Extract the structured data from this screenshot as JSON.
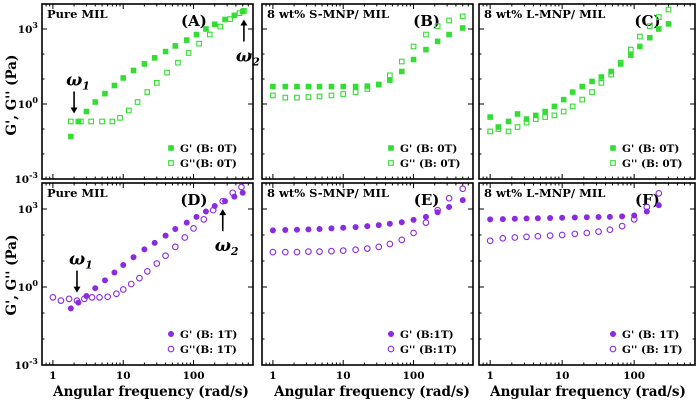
{
  "figure": {
    "ylabel": "G', G'' (Pa)",
    "xlabel": "Angular frequency (rad/s)",
    "colors": {
      "green": "#33dd33",
      "purple": "#8a2be2"
    },
    "y_ticks": [
      {
        "base": "10",
        "exp": "-3",
        "log": -3
      },
      {
        "base": "10",
        "exp": "0",
        "log": 0
      },
      {
        "base": "10",
        "exp": "3",
        "log": 3
      }
    ],
    "x_ticks": [
      {
        "label": "1",
        "log": 0
      },
      {
        "label": "10",
        "log": 1
      },
      {
        "label": "100",
        "log": 2
      }
    ]
  },
  "chart_data": [
    {
      "id": "A",
      "type": "scatter",
      "letter": "(A)",
      "title": "Pure MIL",
      "xscale": "log",
      "yscale": "log",
      "xlim": [
        0.7,
        700
      ],
      "ylim": [
        0.001,
        10000.0
      ],
      "legend_position": "bottom-right",
      "series": [
        {
          "name": "G' (B: 0T)",
          "marker": "square-filled",
          "color": "#33dd33",
          "x": [
            1.8,
            2.3,
            3,
            4,
            5.5,
            7.5,
            10,
            14,
            20,
            28,
            40,
            55,
            80,
            110,
            150,
            200,
            280,
            380,
            500
          ],
          "y": [
            0.05,
            0.2,
            0.5,
            1.2,
            2.6,
            5.5,
            11,
            22,
            40,
            70,
            125,
            210,
            360,
            600,
            1000,
            1550,
            2400,
            3500,
            5000
          ]
        },
        {
          "name": "G''(B: 0T)",
          "marker": "square-open",
          "color": "#33dd33",
          "x": [
            1.8,
            2.5,
            3.5,
            5,
            7,
            9,
            12,
            16,
            22,
            30,
            42,
            60,
            85,
            120,
            170,
            240,
            330,
            450,
            520
          ],
          "y": [
            0.2,
            0.2,
            0.2,
            0.2,
            0.2,
            0.28,
            0.55,
            1.2,
            3,
            7,
            18,
            45,
            110,
            260,
            600,
            1250,
            2500,
            4300,
            5300
          ]
        }
      ],
      "annotations": [
        {
          "symbol": "ω",
          "sub": "1",
          "x": 2,
          "y": 0.2,
          "arrow": "down"
        },
        {
          "symbol": "ω",
          "sub": "2",
          "x": 520,
          "y": 5000,
          "arrow": "up"
        }
      ]
    },
    {
      "id": "B",
      "type": "scatter",
      "letter": "(B)",
      "title": "8 wt% S-MNP/ MIL",
      "xscale": "log",
      "yscale": "log",
      "xlim": [
        0.7,
        700
      ],
      "ylim": [
        0.001,
        10000.0
      ],
      "legend_position": "bottom-right",
      "series": [
        {
          "name": "G' (B: 0T)",
          "marker": "square-filled",
          "color": "#33dd33",
          "x": [
            1,
            1.5,
            2.2,
            3.2,
            4.6,
            6.8,
            10,
            15,
            22,
            32,
            46,
            68,
            100,
            150,
            220,
            320,
            500
          ],
          "y": [
            5,
            5,
            5,
            5,
            5,
            5,
            5,
            5,
            5.2,
            6,
            9,
            20,
            60,
            150,
            320,
            600,
            1100
          ]
        },
        {
          "name": "G'' (B: 0T)",
          "marker": "square-open",
          "color": "#33dd33",
          "x": [
            1,
            1.5,
            2.2,
            3.2,
            4.6,
            6.8,
            10,
            15,
            22,
            32,
            46,
            68,
            100,
            150,
            220,
            320,
            500
          ],
          "y": [
            2.2,
            1.8,
            1.8,
            1.9,
            2,
            2.2,
            2.5,
            3,
            4,
            6,
            14,
            50,
            200,
            600,
            1300,
            2200,
            3200
          ]
        }
      ]
    },
    {
      "id": "C",
      "type": "scatter",
      "letter": "(C)",
      "title": "8 wt% L-MNP/ MIL",
      "xscale": "log",
      "yscale": "log",
      "xlim": [
        0.7,
        700
      ],
      "ylim": [
        0.001,
        10000.0
      ],
      "legend_position": "bottom-right",
      "series": [
        {
          "name": "G' (B: 0T)",
          "marker": "square-filled",
          "color": "#33dd33",
          "x": [
            1,
            1.3,
            1.8,
            2.4,
            3.2,
            4.3,
            5.8,
            7.8,
            10.5,
            14,
            19,
            26,
            35,
            48,
            65,
            90,
            120,
            165,
            220,
            300
          ],
          "y": [
            0.3,
            0.12,
            0.2,
            0.4,
            0.25,
            0.35,
            0.5,
            0.8,
            1.5,
            3,
            5,
            8,
            12,
            20,
            40,
            90,
            200,
            450,
            1000,
            1600
          ]
        },
        {
          "name": "G'' (B: 0T)",
          "marker": "square-open",
          "color": "#33dd33",
          "x": [
            1,
            1.3,
            1.8,
            2.4,
            3.2,
            4.3,
            5.8,
            7.8,
            10.5,
            14,
            19,
            26,
            35,
            48,
            65,
            90,
            120,
            165,
            220,
            300
          ],
          "y": [
            0.08,
            0.1,
            0.08,
            0.12,
            0.18,
            0.25,
            0.3,
            0.35,
            0.5,
            0.8,
            1.5,
            3,
            7,
            15,
            45,
            150,
            500,
            1300,
            3000,
            6000
          ]
        }
      ]
    },
    {
      "id": "D",
      "type": "scatter",
      "letter": "(D)",
      "title": "Pure MIL",
      "xscale": "log",
      "yscale": "log",
      "xlim": [
        0.7,
        700
      ],
      "ylim": [
        0.001,
        10000.0
      ],
      "legend_position": "bottom-right",
      "series": [
        {
          "name": "G' (B: 1T)",
          "marker": "circle-filled",
          "color": "#8a2be2",
          "x": [
            1.8,
            2.3,
            3,
            4,
            5.5,
            7.5,
            10,
            14,
            20,
            28,
            40,
            55,
            80,
            110,
            150,
            200,
            280,
            380,
            500
          ],
          "y": [
            0.15,
            0.25,
            0.45,
            0.9,
            1.8,
            3.6,
            7,
            14,
            28,
            50,
            95,
            170,
            300,
            500,
            800,
            1300,
            2000,
            3000,
            4200
          ]
        },
        {
          "name": "G''(B: 1T)",
          "marker": "circle-open",
          "color": "#8a2be2",
          "x": [
            1,
            1.3,
            1.7,
            2.2,
            2.8,
            3.6,
            4.6,
            6,
            8,
            10,
            13,
            17,
            22,
            30,
            40,
            55,
            75,
            100,
            140,
            190,
            260,
            360,
            480
          ],
          "y": [
            0.4,
            0.3,
            0.35,
            0.3,
            0.35,
            0.4,
            0.4,
            0.42,
            0.55,
            0.8,
            1.3,
            2.2,
            4,
            8,
            16,
            35,
            80,
            180,
            400,
            900,
            2000,
            4200,
            7000
          ]
        }
      ],
      "annotations": [
        {
          "symbol": "ω",
          "sub": "1",
          "x": 2.2,
          "y": 0.3,
          "arrow": "down"
        },
        {
          "symbol": "ω",
          "sub": "2",
          "x": 260,
          "y": 2000,
          "arrow": "up"
        }
      ]
    },
    {
      "id": "E",
      "type": "scatter",
      "letter": "(E)",
      "title": "8 wt% S-MNP/ MIL",
      "xscale": "log",
      "yscale": "log",
      "xlim": [
        0.7,
        700
      ],
      "ylim": [
        0.001,
        10000.0
      ],
      "legend_position": "bottom-right",
      "series": [
        {
          "name": "G' (B:1T)",
          "marker": "circle-filled",
          "color": "#8a2be2",
          "x": [
            1,
            1.5,
            2.2,
            3.2,
            4.6,
            6.8,
            10,
            15,
            22,
            32,
            46,
            68,
            100,
            150,
            220,
            320,
            500
          ],
          "y": [
            150,
            155,
            160,
            165,
            170,
            180,
            190,
            200,
            220,
            240,
            270,
            310,
            380,
            500,
            750,
            1200,
            2200
          ]
        },
        {
          "name": "G'' (B:1T)",
          "marker": "circle-open",
          "color": "#8a2be2",
          "x": [
            1,
            1.5,
            2.2,
            3.2,
            4.6,
            6.8,
            10,
            15,
            22,
            32,
            46,
            68,
            100,
            150,
            220,
            320,
            500
          ],
          "y": [
            22,
            22,
            22,
            23,
            23,
            24,
            25,
            27,
            30,
            35,
            45,
            65,
            120,
            300,
            900,
            2600,
            6000
          ]
        }
      ]
    },
    {
      "id": "F",
      "type": "scatter",
      "letter": "(F)",
      "title": "8 wt% L-MNP/ MIL",
      "xscale": "log",
      "yscale": "log",
      "xlim": [
        0.7,
        700
      ],
      "ylim": [
        0.001,
        10000.0
      ],
      "legend_position": "bottom-right",
      "series": [
        {
          "name": "G' (B: 1T)",
          "marker": "circle-filled",
          "color": "#8a2be2",
          "x": [
            1,
            1.5,
            2.2,
            3.2,
            4.6,
            6.8,
            10,
            15,
            22,
            32,
            46,
            68,
            100,
            150,
            220
          ],
          "y": [
            400,
            410,
            420,
            430,
            440,
            450,
            460,
            470,
            480,
            490,
            500,
            520,
            560,
            800,
            1400
          ]
        },
        {
          "name": "G'' (B: 1T)",
          "marker": "circle-open",
          "color": "#8a2be2",
          "x": [
            1,
            1.5,
            2.2,
            3.2,
            4.6,
            6.8,
            10,
            15,
            22,
            32,
            46,
            68,
            100,
            150,
            220
          ],
          "y": [
            60,
            75,
            80,
            85,
            90,
            95,
            100,
            110,
            120,
            135,
            160,
            220,
            400,
            1200,
            4000
          ]
        }
      ]
    }
  ]
}
